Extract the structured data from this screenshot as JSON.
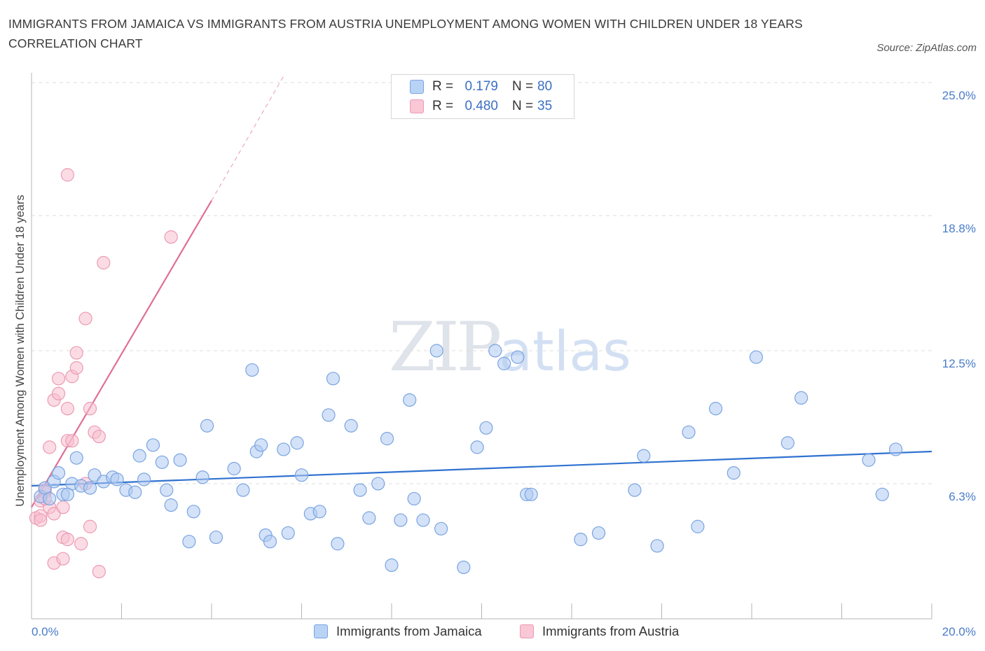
{
  "header": {
    "title": "IMMIGRANTS FROM JAMAICA VS IMMIGRANTS FROM AUSTRIA UNEMPLOYMENT AMONG WOMEN WITH CHILDREN UNDER 18 YEARS CORRELATION CHART",
    "source": "Source: ZipAtlas.com"
  },
  "watermark": {
    "zip": "ZIP",
    "atlas": "atlas"
  },
  "legend": {
    "rows": [
      {
        "r_label": "R =",
        "r_value": "0.179",
        "n_label": "N =",
        "n_value": "80"
      },
      {
        "r_label": "R =",
        "r_value": "0.480",
        "n_label": "N =",
        "n_value": "35"
      }
    ]
  },
  "bottom_legend": {
    "jamaica": "Immigrants from Jamaica",
    "austria": "Immigrants from Austria"
  },
  "colors": {
    "jamaica_fill": "#aecbf2",
    "jamaica_stroke": "#7aa4e0",
    "jamaica_line": "#2f72d0",
    "austria_fill": "#f7bfd0",
    "austria_stroke": "#ec9ab4",
    "austria_line": "#e06e98",
    "grid": "#dedede",
    "tick_text": "#4a7cc9"
  },
  "chart_data": {
    "type": "scatter",
    "title": "IMMIGRANTS FROM JAMAICA VS IMMIGRANTS FROM AUSTRIA UNEMPLOYMENT AMONG WOMEN WITH CHILDREN UNDER 18 YEARS CORRELATION CHART",
    "xlabel": "",
    "ylabel": "Unemployment Among Women with Children Under 18 years",
    "xlim": [
      0,
      20
    ],
    "ylim": [
      0,
      25
    ],
    "x_tick_labels": [
      "0.0%",
      "20.0%"
    ],
    "y_ticks": [
      6.3,
      12.5,
      18.8,
      25.0
    ],
    "y_tick_labels": [
      "6.3%",
      "12.5%",
      "18.8%",
      "25.0%"
    ],
    "grid": true,
    "legend_position": "top-center",
    "series": [
      {
        "name": "Immigrants from Jamaica",
        "R": 0.179,
        "N": 80,
        "trend": {
          "x": [
            0.0,
            20.0
          ],
          "y": [
            6.2,
            7.8
          ]
        },
        "points": [
          [
            0.2,
            5.7
          ],
          [
            0.3,
            6.1
          ],
          [
            0.4,
            5.6
          ],
          [
            0.5,
            6.4
          ],
          [
            0.6,
            6.8
          ],
          [
            0.7,
            5.8
          ],
          [
            0.9,
            6.3
          ],
          [
            1.0,
            7.5
          ],
          [
            1.1,
            6.2
          ],
          [
            1.3,
            6.1
          ],
          [
            1.4,
            6.7
          ],
          [
            1.6,
            6.4
          ],
          [
            1.8,
            6.6
          ],
          [
            1.9,
            6.5
          ],
          [
            2.1,
            6.0
          ],
          [
            2.3,
            5.9
          ],
          [
            2.4,
            7.6
          ],
          [
            2.5,
            6.5
          ],
          [
            2.7,
            8.1
          ],
          [
            2.9,
            7.3
          ],
          [
            3.0,
            6.0
          ],
          [
            3.1,
            5.3
          ],
          [
            3.3,
            7.4
          ],
          [
            3.5,
            3.6
          ],
          [
            3.6,
            5.0
          ],
          [
            3.8,
            6.6
          ],
          [
            3.9,
            9.0
          ],
          [
            4.1,
            3.8
          ],
          [
            4.5,
            7.0
          ],
          [
            4.7,
            6.0
          ],
          [
            4.9,
            11.6
          ],
          [
            5.0,
            7.8
          ],
          [
            5.1,
            8.1
          ],
          [
            5.2,
            3.9
          ],
          [
            5.3,
            3.6
          ],
          [
            5.6,
            7.9
          ],
          [
            5.7,
            4.0
          ],
          [
            5.9,
            8.2
          ],
          [
            6.0,
            6.7
          ],
          [
            6.2,
            4.9
          ],
          [
            6.4,
            5.0
          ],
          [
            6.6,
            9.5
          ],
          [
            6.7,
            11.2
          ],
          [
            6.8,
            3.5
          ],
          [
            7.1,
            9.0
          ],
          [
            7.3,
            6.0
          ],
          [
            7.5,
            4.7
          ],
          [
            7.7,
            6.3
          ],
          [
            7.9,
            8.4
          ],
          [
            8.0,
            2.5
          ],
          [
            8.2,
            4.6
          ],
          [
            8.4,
            10.2
          ],
          [
            8.5,
            5.6
          ],
          [
            8.7,
            4.6
          ],
          [
            9.0,
            12.5
          ],
          [
            9.1,
            4.2
          ],
          [
            9.6,
            2.4
          ],
          [
            9.9,
            8.0
          ],
          [
            10.1,
            8.9
          ],
          [
            10.3,
            12.5
          ],
          [
            10.5,
            11.9
          ],
          [
            10.8,
            12.2
          ],
          [
            11.0,
            5.8
          ],
          [
            11.1,
            5.8
          ],
          [
            12.2,
            3.7
          ],
          [
            12.6,
            4.0
          ],
          [
            13.4,
            6.0
          ],
          [
            13.6,
            7.6
          ],
          [
            13.9,
            3.4
          ],
          [
            14.6,
            8.7
          ],
          [
            14.8,
            4.3
          ],
          [
            15.2,
            9.8
          ],
          [
            15.6,
            6.8
          ],
          [
            16.1,
            12.2
          ],
          [
            16.8,
            8.2
          ],
          [
            17.1,
            10.3
          ],
          [
            18.6,
            7.4
          ],
          [
            18.9,
            5.8
          ],
          [
            19.2,
            7.9
          ],
          [
            0.8,
            5.8
          ]
        ]
      },
      {
        "name": "Immigrants from Austria",
        "R": 0.48,
        "N": 35,
        "trend_solid": {
          "x": [
            0.0,
            4.0
          ],
          "y": [
            5.2,
            19.5
          ]
        },
        "trend_dashed": {
          "x": [
            4.0,
            5.6
          ],
          "y": [
            19.5,
            25.3
          ]
        },
        "points": [
          [
            0.1,
            4.7
          ],
          [
            0.2,
            4.8
          ],
          [
            0.2,
            5.5
          ],
          [
            0.3,
            5.9
          ],
          [
            0.3,
            6.0
          ],
          [
            0.4,
            8.0
          ],
          [
            0.4,
            5.2
          ],
          [
            0.5,
            4.9
          ],
          [
            0.5,
            10.2
          ],
          [
            0.5,
            2.6
          ],
          [
            0.6,
            10.5
          ],
          [
            0.6,
            11.2
          ],
          [
            0.7,
            5.2
          ],
          [
            0.7,
            2.8
          ],
          [
            0.7,
            3.8
          ],
          [
            0.8,
            3.7
          ],
          [
            0.8,
            9.8
          ],
          [
            0.8,
            20.7
          ],
          [
            0.8,
            8.3
          ],
          [
            0.9,
            8.3
          ],
          [
            0.9,
            11.3
          ],
          [
            1.0,
            11.7
          ],
          [
            1.0,
            12.4
          ],
          [
            1.1,
            3.5
          ],
          [
            1.2,
            6.3
          ],
          [
            1.2,
            14.0
          ],
          [
            1.3,
            9.8
          ],
          [
            1.3,
            4.3
          ],
          [
            1.4,
            8.7
          ],
          [
            1.5,
            8.5
          ],
          [
            1.5,
            2.2
          ],
          [
            1.6,
            16.6
          ],
          [
            3.1,
            17.8
          ],
          [
            0.2,
            4.6
          ],
          [
            0.3,
            5.6
          ]
        ]
      }
    ]
  }
}
